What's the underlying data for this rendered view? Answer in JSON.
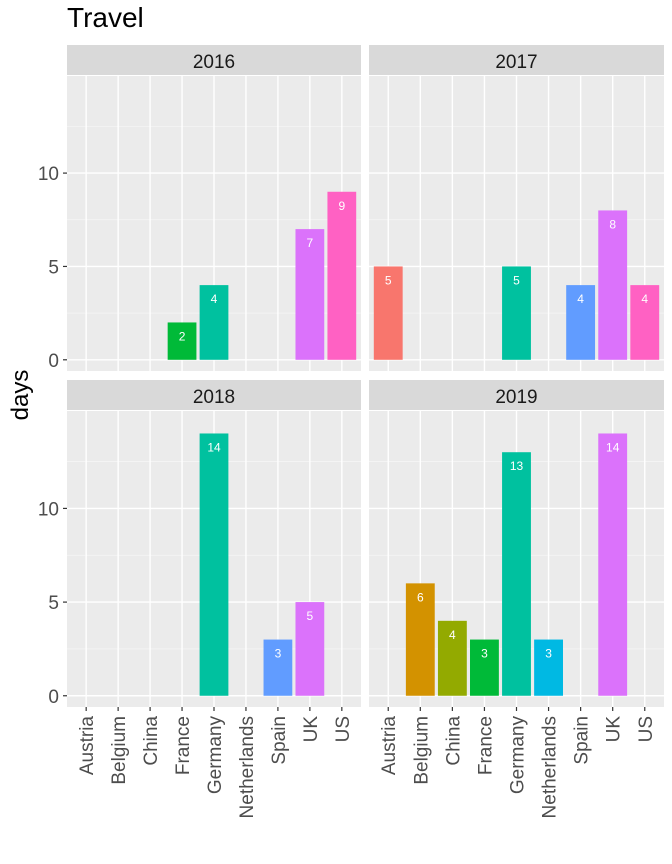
{
  "chart_data": {
    "type": "bar",
    "title": "Travel",
    "xlabel": "",
    "ylabel": "days",
    "ylim": [
      -0.6,
      15.2
    ],
    "yticks": [
      0,
      5,
      10
    ],
    "categories": [
      "Austria",
      "Belgium",
      "China",
      "France",
      "Germany",
      "Netherlands",
      "Spain",
      "UK",
      "US"
    ],
    "colors": {
      "Austria": "#F8766D",
      "Belgium": "#D39200",
      "China": "#93AA00",
      "France": "#00BA38",
      "Germany": "#00C19F",
      "Netherlands": "#00B9E3",
      "Spain": "#619CFF",
      "UK": "#DB72FB",
      "US": "#FF61C3"
    },
    "panels": [
      {
        "label": "2016",
        "values": {
          "France": 2,
          "Germany": 4,
          "UK": 7,
          "US": 9
        }
      },
      {
        "label": "2017",
        "values": {
          "Austria": 5,
          "Germany": 5,
          "Spain": 4,
          "UK": 8,
          "US": 4
        }
      },
      {
        "label": "2018",
        "values": {
          "Germany": 14,
          "Spain": 3,
          "UK": 5
        }
      },
      {
        "label": "2019",
        "values": {
          "Belgium": 6,
          "China": 4,
          "France": 3,
          "Germany": 13,
          "Netherlands": 3,
          "UK": 14
        }
      }
    ],
    "grid": true,
    "legend": "none",
    "facet_layout": "2x2"
  }
}
